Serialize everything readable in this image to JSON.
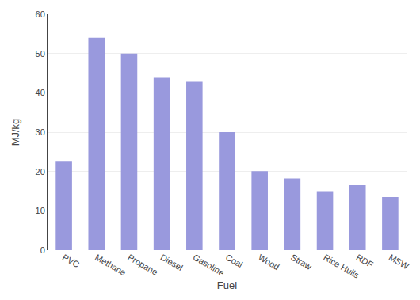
{
  "chart_data": {
    "type": "bar",
    "categories": [
      "PVC",
      "Methane",
      "Propane",
      "Diesel",
      "Gasoline",
      "Coal",
      "Wood",
      "Straw",
      "Rice Hulls",
      "RDF",
      "MSW"
    ],
    "values": [
      22.5,
      54.0,
      50.0,
      44.0,
      43.0,
      30.0,
      20.1,
      18.2,
      15.0,
      16.5,
      13.5
    ],
    "color": "#9999dd",
    "xlabel": "Fuel",
    "ylabel": "MJ/kg",
    "ylim": [
      0,
      60
    ],
    "yticks": [
      0,
      10,
      20,
      30,
      40,
      50,
      60
    ],
    "grid": true
  }
}
